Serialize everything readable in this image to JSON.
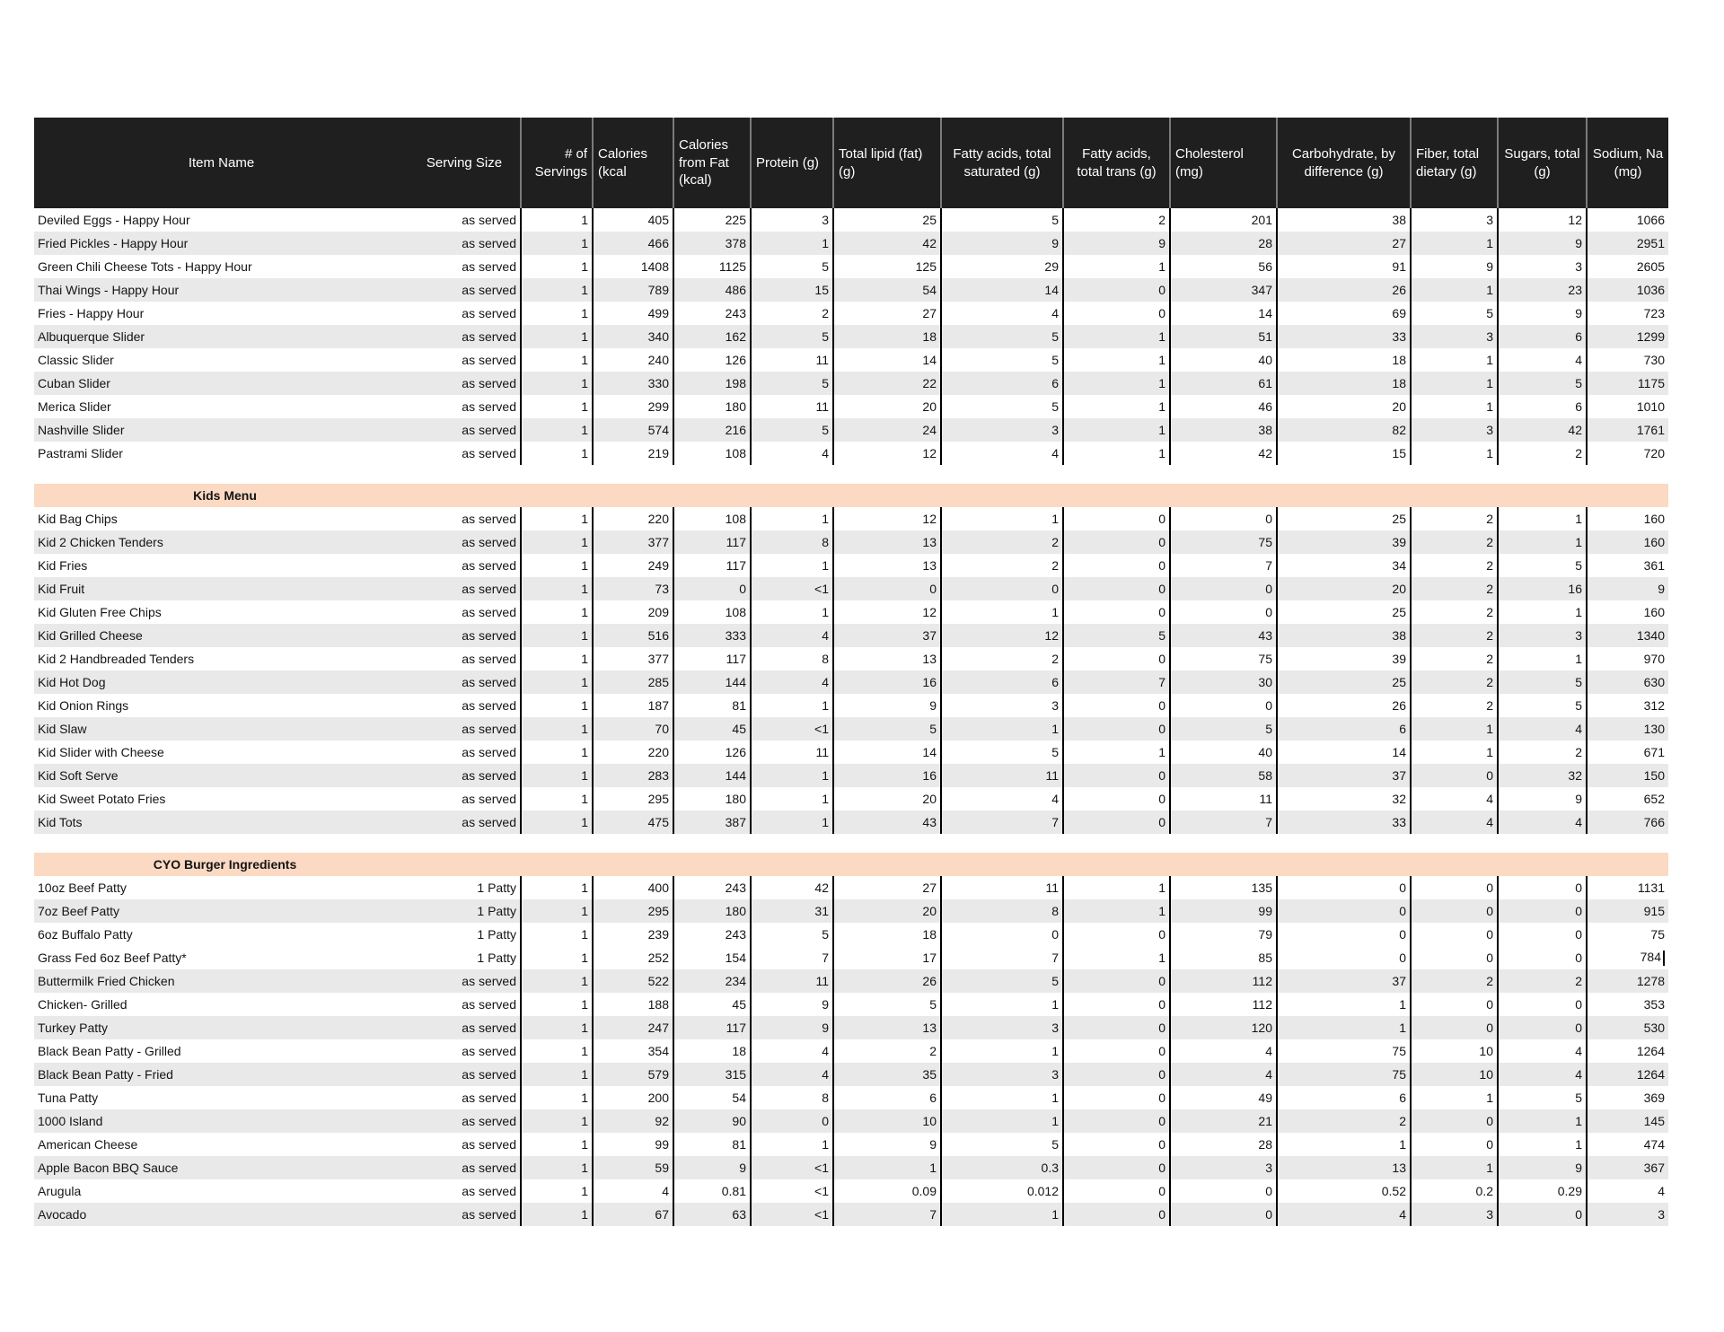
{
  "page": {
    "background": "#ffffff"
  },
  "table": {
    "colors": {
      "header_bg": "#1f1f1f",
      "header_text": "#ffffff",
      "row_bg": "#ffffff",
      "row_alt_bg": "#e9e9e9",
      "section_band_bg": "#fbd9c3",
      "grid_line": "#000000",
      "header_grid_line": "#7b7b7b"
    },
    "columns": [
      {
        "key": "item",
        "label": "Item Name"
      },
      {
        "key": "serving",
        "label": "Serving Size"
      },
      {
        "key": "servings",
        "label": "# of Servings"
      },
      {
        "key": "calories",
        "label": "Calories (kcal"
      },
      {
        "key": "calories_fat",
        "label": "Calories from Fat (kcal)"
      },
      {
        "key": "protein",
        "label": "Protein (g)"
      },
      {
        "key": "total_lipid",
        "label": "Total lipid (fat) (g)"
      },
      {
        "key": "sat_fat",
        "label": "Fatty acids, total saturated (g)"
      },
      {
        "key": "trans_fat",
        "label": "Fatty acids, total trans (g)"
      },
      {
        "key": "cholesterol",
        "label": "Cholesterol (mg)"
      },
      {
        "key": "carbohydrate",
        "label": "Carbohydrate, by difference (g)"
      },
      {
        "key": "fiber",
        "label": "Fiber, total dietary (g)"
      },
      {
        "key": "sugars",
        "label": "Sugars, total (g)"
      },
      {
        "key": "sodium",
        "label": "Sodium, Na (mg)"
      }
    ],
    "sections": [
      {
        "title": "",
        "rows": [
          {
            "item": "Deviled Eggs - Happy Hour",
            "serving": "as served",
            "values": [
              "1",
              "405",
              "225",
              "3",
              "25",
              "5",
              "2",
              "201",
              "38",
              "3",
              "12",
              "1066"
            ],
            "shaded": false
          },
          {
            "item": "Fried Pickles - Happy Hour",
            "serving": "as served",
            "values": [
              "1",
              "466",
              "378",
              "1",
              "42",
              "9",
              "9",
              "28",
              "27",
              "1",
              "9",
              "2951"
            ],
            "shaded": true
          },
          {
            "item": "Green Chili Cheese Tots - Happy Hour",
            "serving": "as served",
            "values": [
              "1",
              "1408",
              "1125",
              "5",
              "125",
              "29",
              "1",
              "56",
              "91",
              "9",
              "3",
              "2605"
            ],
            "shaded": false
          },
          {
            "item": "Thai Wings - Happy Hour",
            "serving": "as served",
            "values": [
              "1",
              "789",
              "486",
              "15",
              "54",
              "14",
              "0",
              "347",
              "26",
              "1",
              "23",
              "1036"
            ],
            "shaded": true
          },
          {
            "item": "Fries - Happy Hour",
            "serving": "as served",
            "values": [
              "1",
              "499",
              "243",
              "2",
              "27",
              "4",
              "0",
              "14",
              "69",
              "5",
              "9",
              "723"
            ],
            "shaded": false
          },
          {
            "item": "Albuquerque Slider",
            "serving": "as served",
            "values": [
              "1",
              "340",
              "162",
              "5",
              "18",
              "5",
              "1",
              "51",
              "33",
              "3",
              "6",
              "1299"
            ],
            "shaded": true
          },
          {
            "item": "Classic Slider",
            "serving": "as served",
            "values": [
              "1",
              "240",
              "126",
              "11",
              "14",
              "5",
              "1",
              "40",
              "18",
              "1",
              "4",
              "730"
            ],
            "shaded": false
          },
          {
            "item": "Cuban Slider",
            "serving": "as served",
            "values": [
              "1",
              "330",
              "198",
              "5",
              "22",
              "6",
              "1",
              "61",
              "18",
              "1",
              "5",
              "1175"
            ],
            "shaded": true
          },
          {
            "item": "Merica Slider",
            "serving": "as served",
            "values": [
              "1",
              "299",
              "180",
              "11",
              "20",
              "5",
              "1",
              "46",
              "20",
              "1",
              "6",
              "1010"
            ],
            "shaded": false
          },
          {
            "item": "Nashville Slider",
            "serving": "as served",
            "values": [
              "1",
              "574",
              "216",
              "5",
              "24",
              "3",
              "1",
              "38",
              "82",
              "3",
              "42",
              "1761"
            ],
            "shaded": true
          },
          {
            "item": "Pastrami Slider",
            "serving": "as served",
            "values": [
              "1",
              "219",
              "108",
              "4",
              "12",
              "4",
              "1",
              "42",
              "15",
              "1",
              "2",
              "720"
            ],
            "shaded": false
          }
        ]
      },
      {
        "title": "Kids Menu",
        "rows": [
          {
            "item": "Kid Bag Chips",
            "serving": "as served",
            "values": [
              "1",
              "220",
              "108",
              "1",
              "12",
              "1",
              "0",
              "0",
              "25",
              "2",
              "1",
              "160"
            ],
            "shaded": false
          },
          {
            "item": "Kid 2 Chicken Tenders",
            "serving": "as served",
            "values": [
              "1",
              "377",
              "117",
              "8",
              "13",
              "2",
              "0",
              "75",
              "39",
              "2",
              "1",
              "160"
            ],
            "shaded": true
          },
          {
            "item": "Kid Fries",
            "serving": "as served",
            "values": [
              "1",
              "249",
              "117",
              "1",
              "13",
              "2",
              "0",
              "7",
              "34",
              "2",
              "5",
              "361"
            ],
            "shaded": false
          },
          {
            "item": "Kid Fruit",
            "serving": "as served",
            "values": [
              "1",
              "73",
              "0",
              "<1",
              "0",
              "0",
              "0",
              "0",
              "20",
              "2",
              "16",
              "9"
            ],
            "shaded": true
          },
          {
            "item": "Kid Gluten Free Chips",
            "serving": "as served",
            "values": [
              "1",
              "209",
              "108",
              "1",
              "12",
              "1",
              "0",
              "0",
              "25",
              "2",
              "1",
              "160"
            ],
            "shaded": false
          },
          {
            "item": "Kid Grilled Cheese",
            "serving": "as served",
            "values": [
              "1",
              "516",
              "333",
              "4",
              "37",
              "12",
              "5",
              "43",
              "38",
              "2",
              "3",
              "1340"
            ],
            "shaded": true
          },
          {
            "item": "Kid 2 Handbreaded Tenders",
            "serving": "as served",
            "values": [
              "1",
              "377",
              "117",
              "8",
              "13",
              "2",
              "0",
              "75",
              "39",
              "2",
              "1",
              "970"
            ],
            "shaded": false
          },
          {
            "item": "Kid Hot Dog",
            "serving": "as served",
            "values": [
              "1",
              "285",
              "144",
              "4",
              "16",
              "6",
              "7",
              "30",
              "25",
              "2",
              "5",
              "630"
            ],
            "shaded": true
          },
          {
            "item": "Kid Onion Rings",
            "serving": "as served",
            "values": [
              "1",
              "187",
              "81",
              "1",
              "9",
              "3",
              "0",
              "0",
              "26",
              "2",
              "5",
              "312"
            ],
            "shaded": false
          },
          {
            "item": "Kid Slaw",
            "serving": "as served",
            "values": [
              "1",
              "70",
              "45",
              "<1",
              "5",
              "1",
              "0",
              "5",
              "6",
              "1",
              "4",
              "130"
            ],
            "shaded": true
          },
          {
            "item": "Kid Slider with Cheese",
            "serving": "as served",
            "values": [
              "1",
              "220",
              "126",
              "11",
              "14",
              "5",
              "1",
              "40",
              "14",
              "1",
              "2",
              "671"
            ],
            "shaded": false
          },
          {
            "item": "Kid Soft Serve",
            "serving": "as served",
            "values": [
              "1",
              "283",
              "144",
              "1",
              "16",
              "11",
              "0",
              "58",
              "37",
              "0",
              "32",
              "150"
            ],
            "shaded": true
          },
          {
            "item": "Kid Sweet Potato Fries",
            "serving": "as served",
            "values": [
              "1",
              "295",
              "180",
              "1",
              "20",
              "4",
              "0",
              "11",
              "32",
              "4",
              "9",
              "652"
            ],
            "shaded": false
          },
          {
            "item": "Kid Tots",
            "serving": "as served",
            "values": [
              "1",
              "475",
              "387",
              "1",
              "43",
              "7",
              "0",
              "7",
              "33",
              "4",
              "4",
              "766"
            ],
            "shaded": true
          }
        ]
      },
      {
        "title": "CYO Burger Ingredients",
        "rows": [
          {
            "item": "10oz Beef Patty",
            "serving": "1 Patty",
            "values": [
              "1",
              "400",
              "243",
              "42",
              "27",
              "11",
              "1",
              "135",
              "0",
              "0",
              "0",
              "1131"
            ],
            "shaded": false
          },
          {
            "item": "7oz Beef Patty",
            "serving": "1 Patty",
            "values": [
              "1",
              "295",
              "180",
              "31",
              "20",
              "8",
              "1",
              "99",
              "0",
              "0",
              "0",
              "915"
            ],
            "shaded": true
          },
          {
            "item": "6oz Buffalo Patty",
            "serving": "1 Patty",
            "values": [
              "1",
              "239",
              "243",
              "5",
              "18",
              "0",
              "0",
              "79",
              "0",
              "0",
              "0",
              "75"
            ],
            "shaded": false
          },
          {
            "item": "Grass Fed 6oz Beef Patty*",
            "serving": "1 Patty",
            "values": [
              "1",
              "252",
              "154",
              "7",
              "17",
              "7",
              "1",
              "85",
              "0",
              "0",
              "0",
              "784"
            ],
            "shaded": false,
            "caret_after_value": true
          },
          {
            "item": "Buttermilk Fried Chicken",
            "serving": "as served",
            "values": [
              "1",
              "522",
              "234",
              "11",
              "26",
              "5",
              "0",
              "112",
              "37",
              "2",
              "2",
              "1278"
            ],
            "shaded": true
          },
          {
            "item": "Chicken- Grilled",
            "serving": "as served",
            "values": [
              "1",
              "188",
              "45",
              "9",
              "5",
              "1",
              "0",
              "112",
              "1",
              "0",
              "0",
              "353"
            ],
            "shaded": false
          },
          {
            "item": "Turkey Patty",
            "serving": "as served",
            "values": [
              "1",
              "247",
              "117",
              "9",
              "13",
              "3",
              "0",
              "120",
              "1",
              "0",
              "0",
              "530"
            ],
            "shaded": true
          },
          {
            "item": "Black Bean Patty - Grilled",
            "serving": "as served",
            "values": [
              "1",
              "354",
              "18",
              "4",
              "2",
              "1",
              "0",
              "4",
              "75",
              "10",
              "4",
              "1264"
            ],
            "shaded": false
          },
          {
            "item": "Black Bean Patty - Fried",
            "serving": "as served",
            "values": [
              "1",
              "579",
              "315",
              "4",
              "35",
              "3",
              "0",
              "4",
              "75",
              "10",
              "4",
              "1264"
            ],
            "shaded": true
          },
          {
            "item": "Tuna Patty",
            "serving": "as served",
            "values": [
              "1",
              "200",
              "54",
              "8",
              "6",
              "1",
              "0",
              "49",
              "6",
              "1",
              "5",
              "369"
            ],
            "shaded": false
          },
          {
            "item": "1000 Island",
            "serving": "as served",
            "values": [
              "1",
              "92",
              "90",
              "0",
              "10",
              "1",
              "0",
              "21",
              "2",
              "0",
              "1",
              "145"
            ],
            "shaded": true
          },
          {
            "item": "American Cheese",
            "serving": "as served",
            "values": [
              "1",
              "99",
              "81",
              "1",
              "9",
              "5",
              "0",
              "28",
              "1",
              "0",
              "1",
              "474"
            ],
            "shaded": false
          },
          {
            "item": "Apple Bacon BBQ Sauce",
            "serving": "as served",
            "values": [
              "1",
              "59",
              "9",
              "<1",
              "1",
              "0.3",
              "0",
              "3",
              "13",
              "1",
              "9",
              "367"
            ],
            "shaded": true
          },
          {
            "item": "Arugula",
            "serving": "as served",
            "values": [
              "1",
              "4",
              "0.81",
              "<1",
              "0.09",
              "0.012",
              "0",
              "0",
              "0.52",
              "0.2",
              "0.29",
              "4"
            ],
            "shaded": false
          },
          {
            "item": "Avocado",
            "serving": "as served",
            "values": [
              "1",
              "67",
              "63",
              "<1",
              "7",
              "1",
              "0",
              "0",
              "4",
              "3",
              "0",
              "3"
            ],
            "shaded": true
          }
        ]
      }
    ]
  }
}
